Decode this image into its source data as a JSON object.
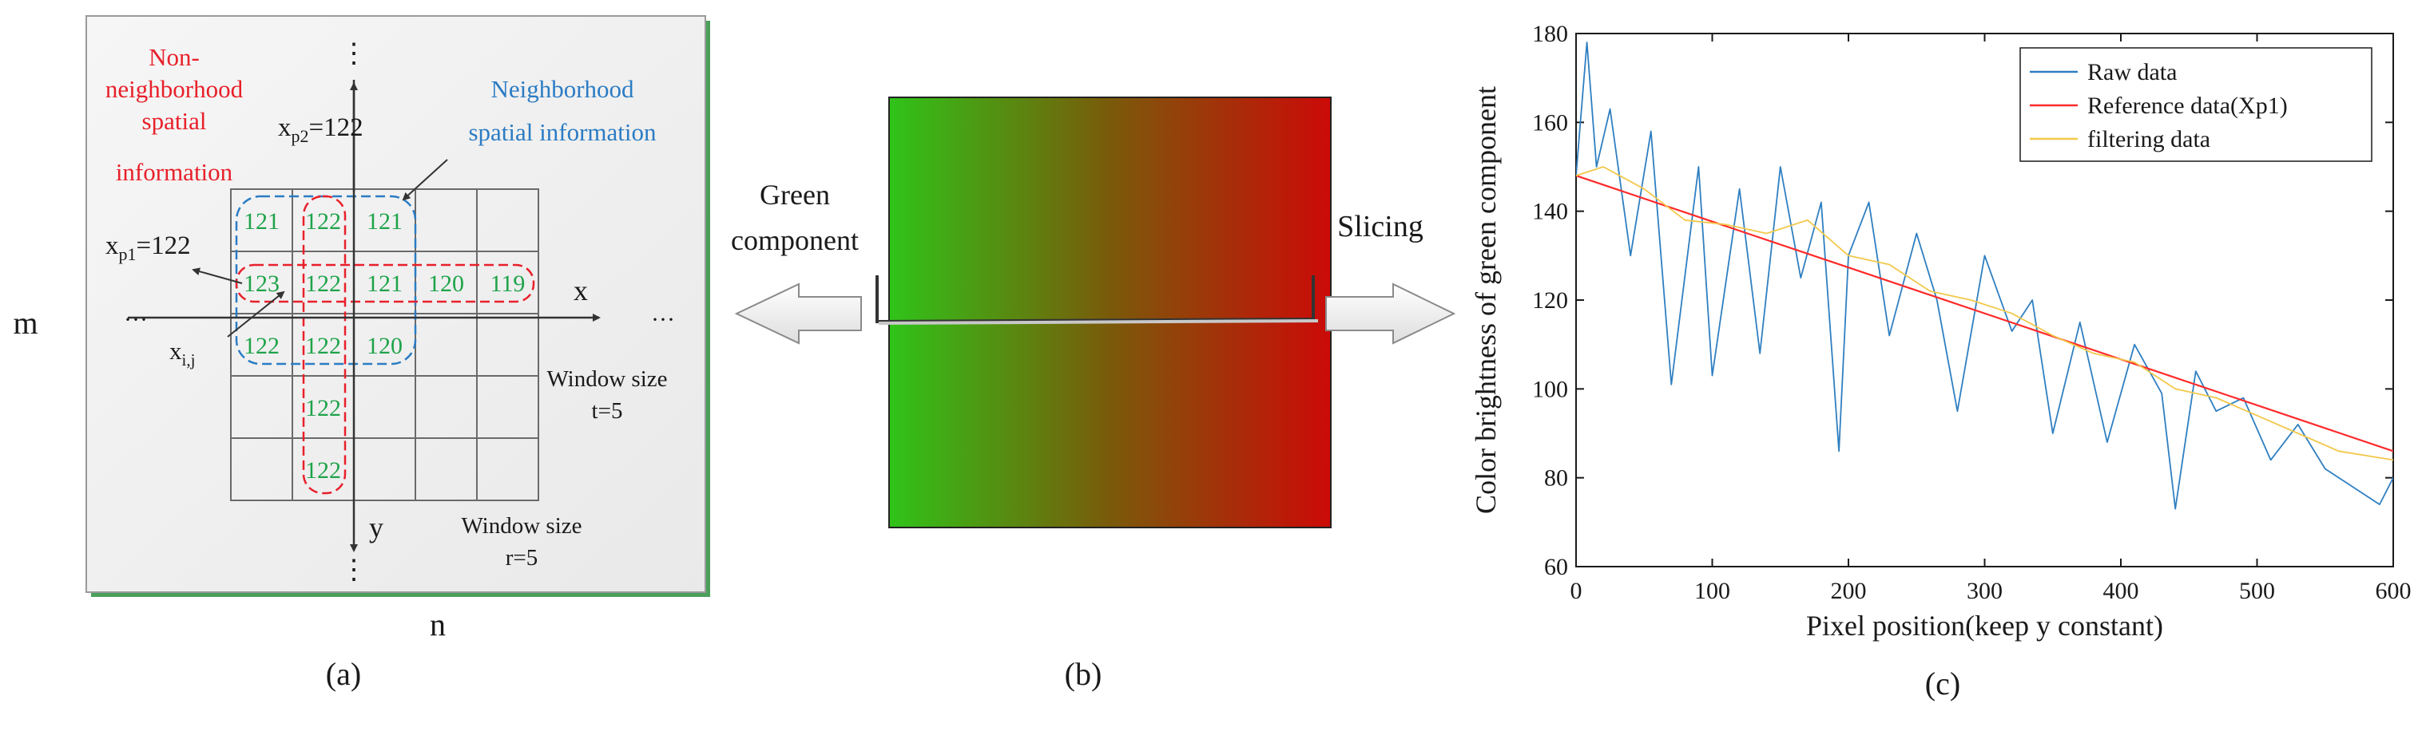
{
  "panel_a": {
    "caption": "(a)",
    "non_neighborhood_label": [
      "Non-",
      "neighborhood",
      "spatial",
      "information"
    ],
    "neighborhood_label": [
      "Neighborhood",
      "spatial information"
    ],
    "vdots": "⋮",
    "hdots": "···",
    "xp2": {
      "base": "x",
      "sub": "p2",
      "rest": "=122"
    },
    "xp1": {
      "base": "x",
      "sub": "p1",
      "rest": "=122"
    },
    "xij": {
      "base": "x",
      "sub": "i,j"
    },
    "x_axis": "x",
    "y_axis": "y",
    "m_label": "m",
    "n_label": "n",
    "window_t": [
      "Window size",
      "t=5"
    ],
    "window_r": [
      "Window size",
      "r=5"
    ],
    "grid_cells": [
      {
        "row": 0,
        "col": 0,
        "value": "121"
      },
      {
        "row": 0,
        "col": 1,
        "value": "122"
      },
      {
        "row": 0,
        "col": 2,
        "value": "121"
      },
      {
        "row": 1,
        "col": 0,
        "value": "123"
      },
      {
        "row": 1,
        "col": 1,
        "value": "122"
      },
      {
        "row": 1,
        "col": 2,
        "value": "121"
      },
      {
        "row": 1,
        "col": 3,
        "value": "120"
      },
      {
        "row": 1,
        "col": 4,
        "value": "119"
      },
      {
        "row": 2,
        "col": 0,
        "value": "122"
      },
      {
        "row": 2,
        "col": 1,
        "value": "122"
      },
      {
        "row": 2,
        "col": 2,
        "value": "120"
      },
      {
        "row": 3,
        "col": 1,
        "value": "122"
      },
      {
        "row": 4,
        "col": 1,
        "value": "122"
      }
    ]
  },
  "panel_b": {
    "caption": "(b)",
    "left_arrow_label": [
      "Green",
      "component"
    ],
    "right_arrow_label": "Slicing"
  },
  "panel_c": {
    "caption": "(c)"
  },
  "colors": {
    "raw": "#2f7fc1",
    "reference": "#ff2a2a",
    "filtering": "#f2c84b",
    "grad_left": "#2fc419",
    "grad_right": "#cc0a08"
  },
  "chart_data": {
    "type": "line",
    "xlabel": "Pixel position(keep y constant)",
    "ylabel": "Color brightness of green component",
    "xlim": [
      0,
      600
    ],
    "ylim": [
      60,
      180
    ],
    "xticks": [
      0,
      100,
      200,
      300,
      400,
      500,
      600
    ],
    "yticks": [
      60,
      80,
      100,
      120,
      140,
      160,
      180
    ],
    "legend_position": "top-right",
    "series": [
      {
        "name": "Raw data",
        "x": [
          0,
          8,
          15,
          25,
          40,
          55,
          70,
          90,
          100,
          120,
          135,
          150,
          165,
          180,
          193,
          200,
          215,
          230,
          250,
          265,
          280,
          300,
          320,
          335,
          350,
          370,
          390,
          410,
          430,
          440,
          455,
          470,
          490,
          510,
          530,
          550,
          570,
          590,
          600
        ],
        "y": [
          148,
          178,
          150,
          163,
          130,
          158,
          101,
          150,
          103,
          145,
          108,
          150,
          125,
          142,
          86,
          130,
          142,
          112,
          135,
          120,
          95,
          130,
          113,
          120,
          90,
          115,
          88,
          110,
          99,
          73,
          104,
          95,
          98,
          84,
          92,
          82,
          78,
          74,
          80
        ]
      },
      {
        "name": "Reference data(Xp1)",
        "x": [
          0,
          600
        ],
        "y": [
          148,
          86
        ]
      },
      {
        "name": "filtering data",
        "x": [
          0,
          20,
          50,
          80,
          110,
          140,
          170,
          200,
          230,
          260,
          290,
          320,
          350,
          380,
          410,
          440,
          470,
          500,
          530,
          560,
          600
        ],
        "y": [
          148,
          150,
          145,
          138,
          137,
          135,
          138,
          130,
          128,
          122,
          120,
          117,
          112,
          108,
          106,
          100,
          98,
          94,
          90,
          86,
          84
        ]
      }
    ]
  }
}
